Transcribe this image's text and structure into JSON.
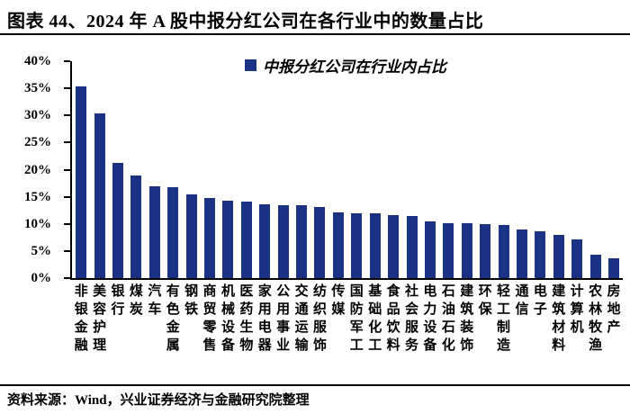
{
  "title": "图表 44、2024 年 A 股中报分红公司在各行业中的数量占比",
  "legend": {
    "label": "中报分红公司在行业内占比",
    "marker": "square-icon"
  },
  "footer": {
    "source_text": "资料来源：Wind，兴业证券经济与金融研究院整理"
  },
  "colors": {
    "bar": "#1B3183",
    "axis": "#000000",
    "rule": "#000000",
    "background": "#FFFFFF",
    "text": "#000000"
  },
  "chart_data": {
    "type": "bar",
    "title": "图表 44、2024 年 A 股中报分红公司在各行业中的数量占比",
    "legend_entries": [
      "中报分红公司在行业内占比"
    ],
    "legend_position": "top-center",
    "xlabel": "",
    "ylabel": "",
    "ylim": [
      0,
      40
    ],
    "ytick_step": 5,
    "ytick_suffix": "%",
    "grid": false,
    "unit": "percent",
    "categories": [
      "非银金融",
      "美容护理",
      "银行",
      "煤炭",
      "汽车",
      "有色金属",
      "钢铁",
      "商贸零售",
      "机械设备",
      "医药生物",
      "家用电器",
      "公用事业",
      "交通运输",
      "纺织服饰",
      "传媒",
      "国防军工",
      "基础化工",
      "食品饮料",
      "社会服务",
      "电力设备",
      "石油石化",
      "建筑装饰",
      "环保",
      "轻工制造",
      "通信",
      "电子",
      "建筑材料",
      "计算机",
      "农林牧渔",
      "房地产"
    ],
    "values": [
      35.4,
      30.4,
      21.2,
      18.9,
      16.9,
      16.8,
      15.4,
      14.7,
      14.2,
      14.1,
      13.7,
      13.5,
      13.4,
      13.1,
      12.2,
      12.0,
      11.9,
      11.7,
      11.4,
      10.5,
      10.2,
      10.1,
      10.0,
      9.8,
      9.0,
      8.6,
      7.9,
      7.2,
      4.3,
      3.7
    ]
  }
}
